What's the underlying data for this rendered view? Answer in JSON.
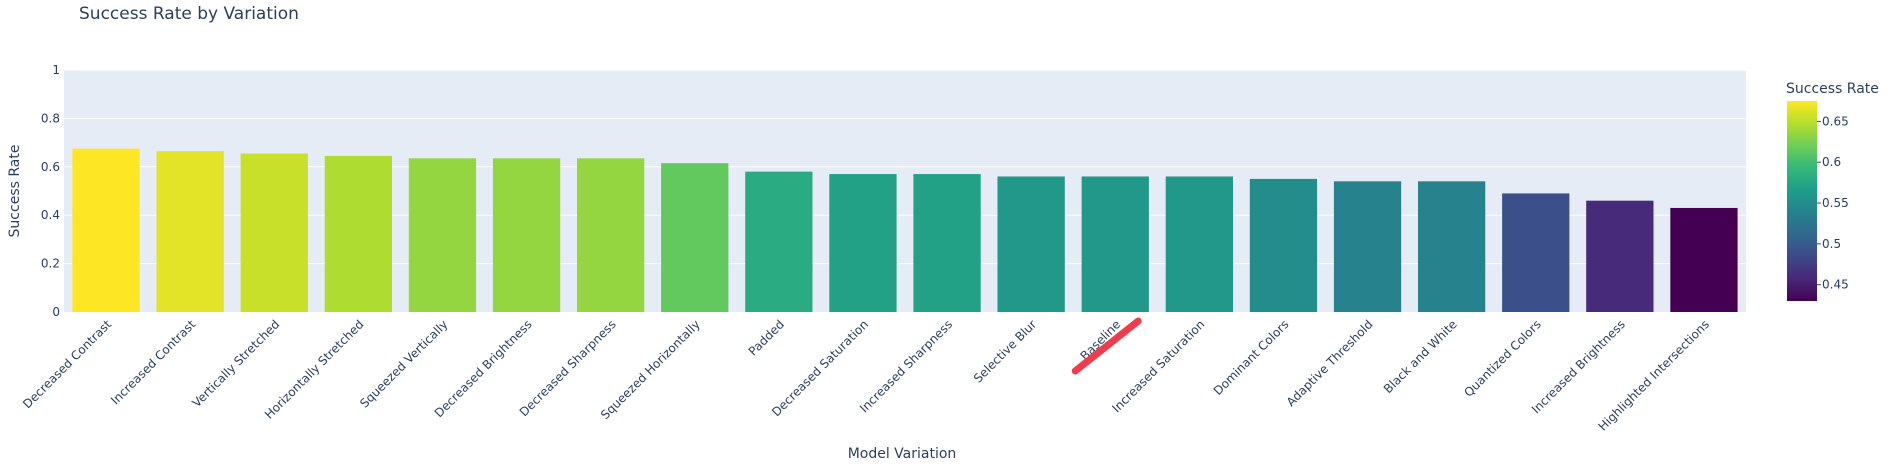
{
  "chart_data": {
    "type": "bar",
    "title": "Success Rate by Variation",
    "xlabel": "Model Variation",
    "ylabel": "Success Rate",
    "ylim": [
      0,
      1
    ],
    "yticks": [
      0,
      0.2,
      0.4,
      0.6,
      0.8,
      1
    ],
    "ytick_labels": [
      "0",
      "0.2",
      "0.4",
      "0.6",
      "0.8",
      "1"
    ],
    "grid": true,
    "categories": [
      "Decreased Contrast",
      "Increased Contrast",
      "Vertically Stretched",
      "Horizontally Stretched",
      "Squeezed Vertically",
      "Decreased Brightness",
      "Decreased Sharpness",
      "Squeezed Horizontally",
      "Padded",
      "Decreased Saturation",
      "Increased Sharpness",
      "Selective Blur",
      "Baseline",
      "Increased Saturation",
      "Dominant Colors",
      "Adaptive Threshold",
      "Black and White",
      "Quantized Colors",
      "Increased Brightness",
      "Highlighted Intersections"
    ],
    "values": [
      0.675,
      0.665,
      0.655,
      0.645,
      0.635,
      0.635,
      0.635,
      0.615,
      0.58,
      0.57,
      0.57,
      0.56,
      0.56,
      0.56,
      0.55,
      0.54,
      0.54,
      0.49,
      0.46,
      0.43
    ],
    "highlight": "Baseline",
    "highlight_color": "#ef3b4b",
    "colorbar": {
      "title": "Success Rate",
      "colorscale": "Viridis",
      "range": [
        0.43,
        0.675
      ],
      "ticks": [
        0.45,
        0.5,
        0.55,
        0.6,
        0.65
      ],
      "tick_labels": [
        "0.45",
        "0.5",
        "0.55",
        "0.6",
        "0.65"
      ]
    },
    "colors": {
      "plot_bg": "#e5ecf6",
      "grid": "#ffffff",
      "text": "#2a3f5f"
    }
  }
}
